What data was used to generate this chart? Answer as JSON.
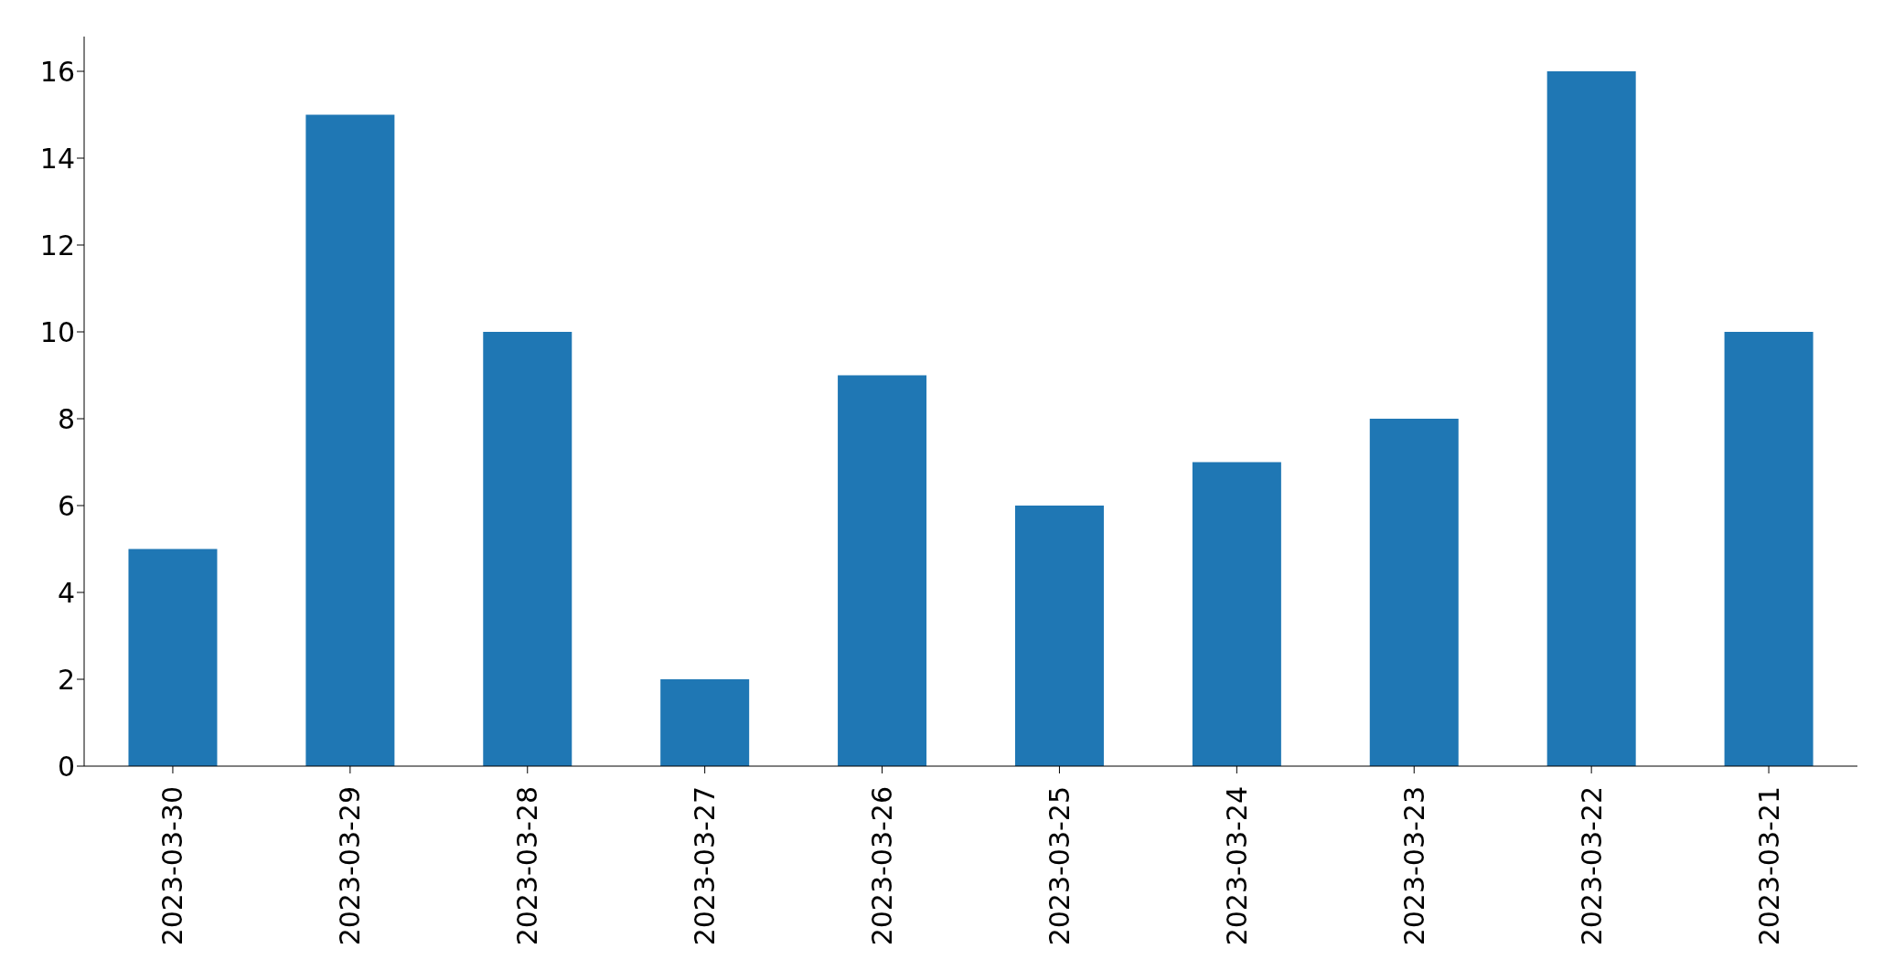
{
  "chart_data": {
    "type": "bar",
    "categories": [
      "2023-03-30",
      "2023-03-29",
      "2023-03-28",
      "2023-03-27",
      "2023-03-26",
      "2023-03-25",
      "2023-03-24",
      "2023-03-23",
      "2023-03-22",
      "2023-03-21"
    ],
    "values": [
      5,
      15,
      10,
      2,
      9,
      6,
      7,
      8,
      16,
      10
    ],
    "color": "#1f77b4",
    "ylim": [
      0,
      16.8
    ],
    "yticks": [
      0,
      2,
      4,
      6,
      8,
      10,
      12,
      14,
      16
    ],
    "grid": false,
    "legend": false
  }
}
